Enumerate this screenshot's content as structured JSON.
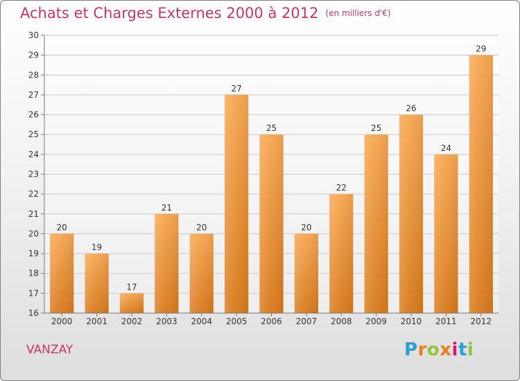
{
  "header": {
    "title": "Achats et Charges Externes 2000 à 2012",
    "subtitle": "(en milliers d'€)"
  },
  "footer": {
    "commune": "VANZAY",
    "logo": "Proxiti"
  },
  "colors": {
    "title": "#cc3366",
    "bar_top": "#f7a752",
    "bar_bottom": "#d87a1c",
    "logo_letters": [
      "#2a9fd6",
      "#ee7d1e",
      "#8ec63f",
      "#ee7d1e",
      "#d8157d",
      "#2a9fd6",
      "#8ec63f"
    ]
  },
  "chart_data": {
    "type": "bar",
    "categories": [
      "2000",
      "2001",
      "2002",
      "2003",
      "2004",
      "2005",
      "2006",
      "2007",
      "2008",
      "2009",
      "2010",
      "2011",
      "2012"
    ],
    "values": [
      20,
      19,
      17,
      21,
      20,
      27,
      25,
      20,
      22,
      25,
      26,
      24,
      29
    ],
    "ylim": [
      16,
      30
    ],
    "yticks": [
      16,
      17,
      18,
      19,
      20,
      21,
      22,
      23,
      24,
      25,
      26,
      27,
      28,
      29,
      30
    ],
    "grid": true,
    "legend": "none",
    "data_labels": true
  }
}
